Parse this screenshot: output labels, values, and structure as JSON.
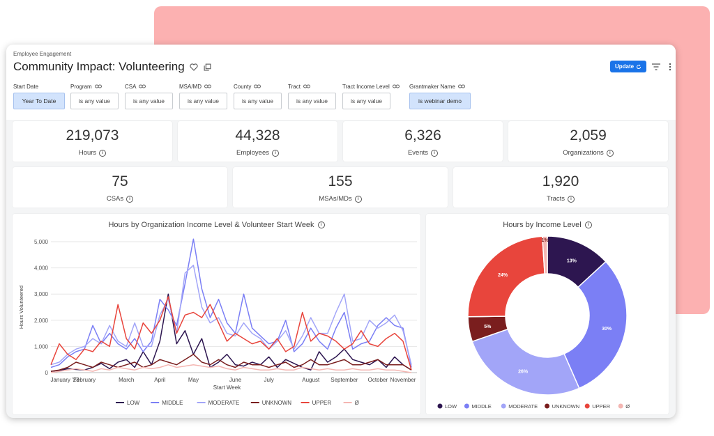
{
  "breadcrumb": "Employee Engagement",
  "title": "Community Impact: Volunteering",
  "update_label": "Update",
  "filters": [
    {
      "label": "Start Date",
      "value": "Year To Date",
      "active": true,
      "link": false
    },
    {
      "label": "Program",
      "value": "is any value",
      "active": false,
      "link": true
    },
    {
      "label": "CSA",
      "value": "is any value",
      "active": false,
      "link": true
    },
    {
      "label": "MSA/MD",
      "value": "is any value",
      "active": false,
      "link": true
    },
    {
      "label": "County",
      "value": "is any value",
      "active": false,
      "link": true
    },
    {
      "label": "Tract",
      "value": "is any value",
      "active": false,
      "link": true
    },
    {
      "label": "Tract Income Level",
      "value": "is any value",
      "active": false,
      "link": true
    },
    {
      "label": "Grantmaker Name",
      "value": "is webinar demo",
      "active": true,
      "link": true
    }
  ],
  "kpis_row1": [
    {
      "value": "219,073",
      "label": "Hours"
    },
    {
      "value": "44,328",
      "label": "Employees"
    },
    {
      "value": "6,326",
      "label": "Events"
    },
    {
      "value": "2,059",
      "label": "Organizations"
    }
  ],
  "kpis_row2": [
    {
      "value": "75",
      "label": "CSAs"
    },
    {
      "value": "155",
      "label": "MSAs/MDs"
    },
    {
      "value": "1,920",
      "label": "Tracts"
    }
  ],
  "line_chart": {
    "title": "Hours by Organization Income Level & Volunteer Start Week"
  },
  "pie_chart": {
    "title": "Hours by Income Level"
  },
  "chart_data": [
    {
      "type": "line",
      "title": "Hours by Organization Income Level & Volunteer Start Week",
      "xlabel": "Start Week",
      "ylabel": "Hours Volunteered",
      "ylim": [
        0,
        5000
      ],
      "yticks": [
        "0",
        "1,000",
        "2,000",
        "3,000",
        "4,000",
        "5,000"
      ],
      "xticks": [
        "January '23",
        "February",
        "March",
        "April",
        "May",
        "June",
        "July",
        "August",
        "September",
        "October",
        "November"
      ],
      "grid": true,
      "legend_position": "bottom",
      "series": [
        {
          "name": "LOW",
          "color": "#2d1650",
          "values": [
            50,
            80,
            150,
            120,
            100,
            200,
            350,
            150,
            400,
            500,
            200,
            800,
            300,
            1200,
            3000,
            1100,
            1600,
            700,
            1300,
            200,
            400,
            700,
            300,
            250,
            400,
            300,
            600,
            200,
            500,
            350,
            200,
            100,
            800,
            400,
            600,
            900,
            500,
            400,
            300,
            500,
            200,
            600,
            300,
            100
          ]
        },
        {
          "name": "MIDDLE",
          "color": "#7b7ff5",
          "values": [
            200,
            300,
            600,
            800,
            900,
            1800,
            1100,
            1500,
            1100,
            900,
            1300,
            800,
            1200,
            2800,
            2400,
            1800,
            3400,
            5100,
            3200,
            2100,
            2800,
            1900,
            1500,
            3000,
            1700,
            1400,
            1100,
            1200,
            2000,
            800,
            1100,
            1700,
            1200,
            900,
            1700,
            2300,
            900,
            1100,
            1200,
            1800,
            2100,
            1800,
            1700,
            200
          ]
        },
        {
          "name": "MODERATE",
          "color": "#a2a5f8",
          "values": [
            300,
            400,
            700,
            900,
            1000,
            1300,
            1100,
            1800,
            1200,
            1000,
            1900,
            1000,
            1000,
            2200,
            2800,
            1500,
            3800,
            4100,
            2500,
            1900,
            2100,
            1500,
            1400,
            1900,
            1500,
            1300,
            900,
            1200,
            1600,
            900,
            1400,
            2100,
            1500,
            1500,
            2300,
            3000,
            1200,
            1300,
            2000,
            1700,
            1900,
            2200,
            1600,
            300
          ]
        },
        {
          "name": "UNKNOWN",
          "color": "#7a1e1e",
          "values": [
            50,
            100,
            200,
            400,
            300,
            200,
            400,
            300,
            200,
            300,
            400,
            200,
            300,
            500,
            400,
            300,
            500,
            700,
            400,
            300,
            500,
            300,
            200,
            400,
            300,
            300,
            200,
            300,
            400,
            200,
            300,
            500,
            300,
            300,
            400,
            500,
            300,
            300,
            400,
            500,
            300,
            300,
            300,
            100
          ]
        },
        {
          "name": "UPPER",
          "color": "#e8453c",
          "values": [
            300,
            1100,
            700,
            500,
            900,
            800,
            1200,
            1000,
            2600,
            1300,
            900,
            1900,
            1500,
            2000,
            2900,
            1500,
            2200,
            2300,
            2100,
            2600,
            1900,
            1200,
            1500,
            1300,
            1100,
            1200,
            900,
            1300,
            800,
            1000,
            2300,
            1200,
            1500,
            1400,
            1200,
            900,
            1100,
            1600,
            1100,
            1000,
            1300,
            1500,
            1200,
            100
          ]
        },
        {
          "name": "Ø",
          "color": "#f4b6b2",
          "values": [
            0,
            50,
            100,
            150,
            100,
            50,
            150,
            100,
            200,
            150,
            100,
            200,
            150,
            200,
            300,
            200,
            250,
            300,
            250,
            200,
            250,
            150,
            100,
            200,
            150,
            100,
            100,
            150,
            100,
            100,
            200,
            150,
            100,
            150,
            100,
            100,
            150,
            100,
            100,
            150,
            100,
            100,
            50,
            0
          ]
        }
      ]
    },
    {
      "type": "pie",
      "title": "Hours by Income Level",
      "legend_position": "bottom",
      "slices": [
        {
          "name": "LOW",
          "value": 13,
          "label": "13%",
          "color": "#2d1650"
        },
        {
          "name": "MIDDLE",
          "value": 30,
          "label": "30%",
          "color": "#7b7ff5"
        },
        {
          "name": "MODERATE",
          "value": 26,
          "label": "26%",
          "color": "#a2a5f8"
        },
        {
          "name": "UNKNOWN",
          "value": 5,
          "label": "5%",
          "color": "#7a1e1e"
        },
        {
          "name": "UPPER",
          "value": 24,
          "label": "24%",
          "color": "#e8453c"
        },
        {
          "name": "Ø",
          "value": 1,
          "label": "1%",
          "color": "#f4b6b2"
        }
      ]
    }
  ]
}
